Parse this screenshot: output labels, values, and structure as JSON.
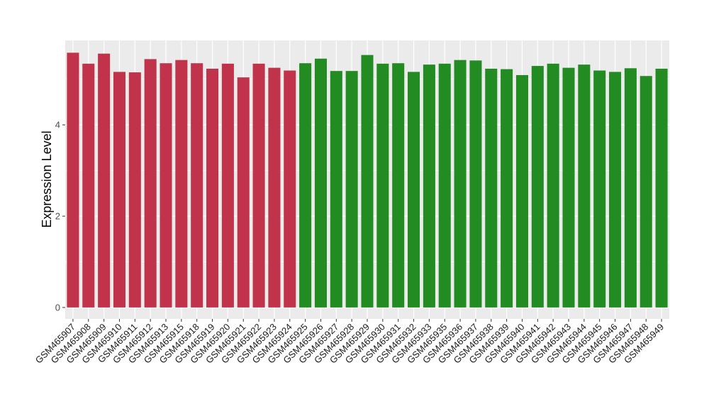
{
  "chart_data": {
    "type": "bar",
    "title": "",
    "xlabel": "",
    "ylabel": "Expression Level",
    "ylim": [
      -0.25,
      5.85
    ],
    "yticks": [
      0,
      2,
      4
    ],
    "grid": true,
    "legend": "none",
    "colors": {
      "group1": "#c1334b",
      "group2": "#228b22",
      "panel": "#ebebeb",
      "grid": "#ffffff"
    },
    "categories": [
      "GSM465907",
      "GSM465908",
      "GSM465909",
      "GSM465910",
      "GSM465911",
      "GSM465912",
      "GSM465913",
      "GSM465915",
      "GSM465918",
      "GSM465919",
      "GSM465920",
      "GSM465921",
      "GSM465922",
      "GSM465923",
      "GSM465924",
      "GSM465925",
      "GSM465926",
      "GSM465927",
      "GSM465928",
      "GSM465929",
      "GSM465930",
      "GSM465931",
      "GSM465932",
      "GSM465933",
      "GSM465935",
      "GSM465936",
      "GSM465937",
      "GSM465938",
      "GSM465939",
      "GSM465940",
      "GSM465941",
      "GSM465942",
      "GSM465943",
      "GSM465944",
      "GSM465945",
      "GSM465946",
      "GSM465947",
      "GSM465948",
      "GSM465949"
    ],
    "values": [
      5.58,
      5.34,
      5.56,
      5.16,
      5.15,
      5.44,
      5.35,
      5.42,
      5.35,
      5.23,
      5.34,
      5.04,
      5.34,
      5.25,
      5.19,
      5.35,
      5.45,
      5.18,
      5.18,
      5.53,
      5.34,
      5.35,
      5.16,
      5.32,
      5.34,
      5.42,
      5.41,
      5.23,
      5.22,
      5.09,
      5.29,
      5.34,
      5.25,
      5.32,
      5.19,
      5.16,
      5.24,
      5.07,
      5.23
    ],
    "groups": [
      1,
      1,
      1,
      1,
      1,
      1,
      1,
      1,
      1,
      1,
      1,
      1,
      1,
      1,
      1,
      2,
      2,
      2,
      2,
      2,
      2,
      2,
      2,
      2,
      2,
      2,
      2,
      2,
      2,
      2,
      2,
      2,
      2,
      2,
      2,
      2,
      2,
      2,
      2
    ]
  }
}
